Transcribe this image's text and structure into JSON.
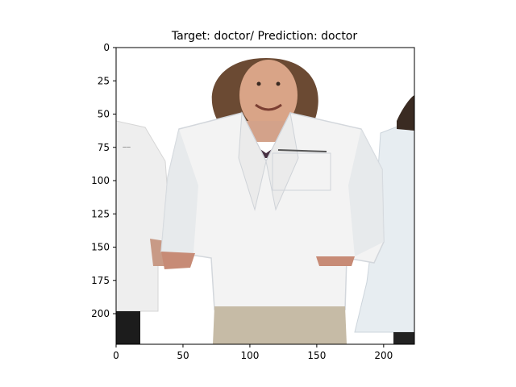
{
  "chart_data": {
    "type": "image",
    "title": "Target: doctor/ Prediction: doctor",
    "xlim": [
      0,
      223
    ],
    "ylim": [
      223,
      0
    ],
    "x_ticks": [
      0,
      50,
      100,
      150,
      200
    ],
    "y_ticks": [
      0,
      25,
      50,
      75,
      100,
      125,
      150,
      175,
      200
    ],
    "image_content": "woman in white lab coat",
    "colors": {
      "background": "#ffffff",
      "coat": "#f3f3f3",
      "coat_shadow": "#d9dde2",
      "hair": "#6b4a33",
      "skin": "#d9a487",
      "pants": "#c6bba6",
      "dark": "#222222"
    }
  }
}
